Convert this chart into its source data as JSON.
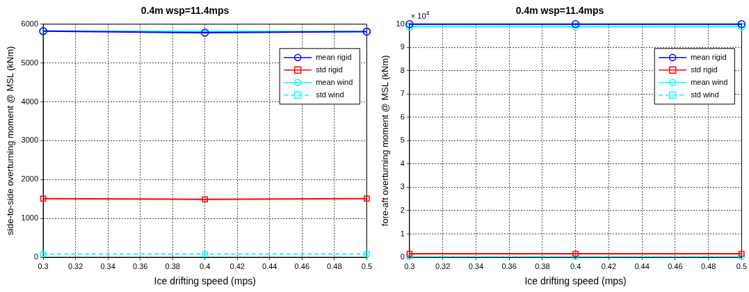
{
  "chart_data": [
    {
      "type": "line",
      "title": "0.4m wsp=11.4mps",
      "xlabel": "Ice drifting speed (mps)",
      "ylabel": "side-to-side overturning moment @ MSL (kNm)",
      "x": [
        0.3,
        0.4,
        0.5
      ],
      "xlim": [
        0.3,
        0.5
      ],
      "xticks": [
        0.3,
        0.32,
        0.34,
        0.36,
        0.38,
        0.4,
        0.42,
        0.44,
        0.46,
        0.48,
        0.5
      ],
      "ylim": [
        0,
        6000
      ],
      "yticks": [
        0,
        1000,
        2000,
        3000,
        4000,
        5000,
        6000
      ],
      "grid": true,
      "legend": "top right",
      "series": [
        {
          "name": "mean rigid",
          "color": "#0000ff",
          "values": [
            5820,
            5780,
            5810
          ],
          "marker": "circle",
          "line_style": "solid"
        },
        {
          "name": "std rigid",
          "color": "#ff0000",
          "values": [
            1510,
            1490,
            1510
          ],
          "marker": "square",
          "line_style": "solid"
        },
        {
          "name": "mean wind",
          "color": "#00ffff",
          "values": [
            5820,
            null,
            5810
          ],
          "marker": "circle",
          "line_style": "solid"
        },
        {
          "name": "std wind",
          "color": "#00ffff",
          "values": [
            80,
            80,
            80
          ],
          "marker": "square",
          "line_style": "dashed"
        }
      ]
    },
    {
      "type": "line",
      "title": "0.4m wsp=11.4mps",
      "xlabel": "Ice drifting speed (mps)",
      "ylabel": "fore-aft overturning moment @ MSL (kNm)",
      "annotations": [
        "× 10$^{4}$"
      ],
      "x": [
        0.3,
        0.4,
        0.5
      ],
      "xlim": [
        0.3,
        0.5
      ],
      "xticks": [
        0.3,
        0.32,
        0.34,
        0.36,
        0.38,
        0.4,
        0.42,
        0.44,
        0.46,
        0.48,
        0.5
      ],
      "ylim": [
        0,
        10
      ],
      "yticks": [
        0,
        1,
        2,
        3,
        4,
        5,
        6,
        7,
        8,
        9,
        10
      ],
      "grid": true,
      "legend": "top right",
      "series": [
        {
          "name": "mean rigid",
          "color": "#0000ff",
          "values": [
            10.0,
            10.0,
            10.0
          ],
          "marker": "circle",
          "line_style": "solid"
        },
        {
          "name": "std rigid",
          "color": "#ff0000",
          "values": [
            0.15,
            0.15,
            0.15
          ],
          "marker": "square",
          "line_style": "solid"
        },
        {
          "name": "mean wind",
          "color": "#00ffff",
          "values": [
            9.9,
            9.9,
            9.9
          ],
          "marker": "circle",
          "line_style": "solid"
        },
        {
          "name": "std wind",
          "color": "#00ffff",
          "values": [
            0.03,
            0.03,
            0.03
          ],
          "marker": "square",
          "line_style": "dashed"
        }
      ]
    }
  ]
}
